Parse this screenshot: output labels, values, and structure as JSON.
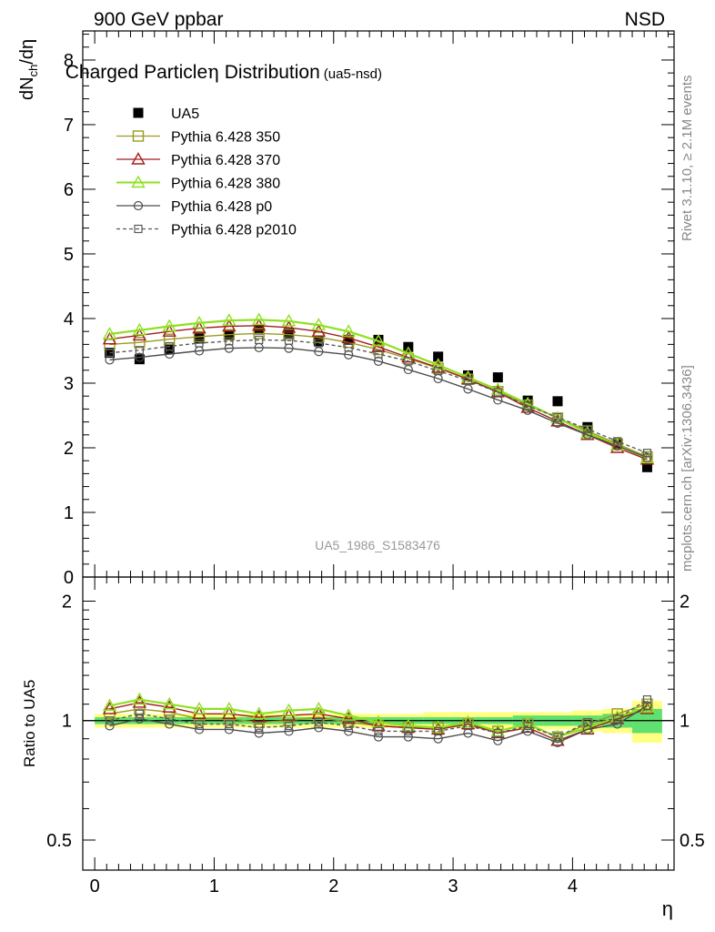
{
  "header": {
    "left": "900 GeV ppbar",
    "right": "NSD"
  },
  "side_labels": {
    "rivet": "Rivet 3.1.10, ≥ 2.1M events",
    "mcplots": "mcplots.cern.ch [arXiv:1306.3436]"
  },
  "chart_data": [
    {
      "type": "scatter",
      "title": "Charged Particle",
      "title_symbol": "η",
      "title_main": "Distribution",
      "title_sub": "(ua5-nsd)",
      "ylabel": "dN",
      "ylabel_sub": "ch",
      "ylabel_tail": "/dη",
      "watermark": "UA5_1986_S1583476",
      "xlim": [
        -0.1,
        4.85
      ],
      "ylim": [
        0,
        8.45
      ],
      "yticks": [
        0,
        1,
        2,
        3,
        4,
        5,
        6,
        7,
        8
      ],
      "grid": false,
      "legend_position": "top-left",
      "x": [
        0.125,
        0.375,
        0.625,
        0.875,
        1.125,
        1.375,
        1.625,
        1.875,
        2.125,
        2.375,
        2.625,
        2.875,
        3.125,
        3.375,
        3.625,
        3.875,
        4.125,
        4.375,
        4.625
      ],
      "series": [
        {
          "name": "UA5",
          "color": "#000000",
          "marker": "filled-square",
          "line": "none",
          "values": [
            3.47,
            3.37,
            3.52,
            3.69,
            3.74,
            3.83,
            3.77,
            3.65,
            3.67,
            3.67,
            3.56,
            3.41,
            3.12,
            3.09,
            2.73,
            2.72,
            2.32,
            2.07,
            1.7
          ]
        },
        {
          "name": "Pythia 6.428 350",
          "color": "#9a9a23",
          "marker": "open-square",
          "line": "solid",
          "values": [
            3.6,
            3.63,
            3.68,
            3.72,
            3.75,
            3.77,
            3.75,
            3.71,
            3.63,
            3.52,
            3.38,
            3.23,
            3.06,
            2.87,
            2.66,
            2.46,
            2.26,
            2.06,
            1.86
          ]
        },
        {
          "name": "Pythia 6.428 370",
          "color": "#a31d1d",
          "marker": "open-triangle",
          "line": "solid",
          "values": [
            3.68,
            3.74,
            3.8,
            3.85,
            3.88,
            3.89,
            3.86,
            3.8,
            3.7,
            3.56,
            3.4,
            3.24,
            3.06,
            2.86,
            2.62,
            2.41,
            2.2,
            2.0,
            1.82
          ]
        },
        {
          "name": "Pythia 6.428 380",
          "color": "#8ee01f",
          "marker": "open-triangle",
          "line": "solid",
          "values": [
            3.76,
            3.82,
            3.88,
            3.93,
            3.97,
            3.98,
            3.96,
            3.9,
            3.8,
            3.65,
            3.46,
            3.28,
            3.09,
            2.9,
            2.68,
            2.46,
            2.23,
            2.04,
            1.84
          ]
        },
        {
          "name": "Pythia 6.428 p0",
          "color": "#4d4d4d",
          "marker": "open-circle",
          "line": "solid",
          "values": [
            3.36,
            3.4,
            3.45,
            3.5,
            3.54,
            3.55,
            3.54,
            3.49,
            3.44,
            3.34,
            3.21,
            3.07,
            2.91,
            2.74,
            2.58,
            2.38,
            2.2,
            2.03,
            1.85
          ]
        },
        {
          "name": "Pythia 6.428 p2010",
          "color": "#5a5a5a",
          "marker": "open-square-small",
          "line": "dashed",
          "values": [
            3.47,
            3.51,
            3.57,
            3.62,
            3.65,
            3.67,
            3.66,
            3.62,
            3.55,
            3.45,
            3.34,
            3.19,
            3.04,
            2.86,
            2.65,
            2.47,
            2.29,
            2.1,
            1.92
          ]
        }
      ]
    },
    {
      "type": "line",
      "ylabel": "Ratio to UA5",
      "xlabel": "η",
      "xlim": [
        -0.1,
        4.85
      ],
      "ylim": [
        0.42,
        2.3
      ],
      "ytick_labels": [
        "0.5",
        "1",
        "2"
      ],
      "yticks": [
        0.5,
        1,
        2
      ],
      "xticks": [
        0,
        1,
        2,
        3,
        4
      ],
      "reference_line": 1,
      "band_colors": {
        "outer": "#ffff80",
        "inner": "#60e070"
      },
      "bands": [
        {
          "x0": 0.0,
          "x1": 0.25,
          "outer": [
            0.96,
            1.04
          ],
          "inner": [
            0.98,
            1.02
          ]
        },
        {
          "x0": 0.25,
          "x1": 0.5,
          "outer": [
            0.96,
            1.04
          ],
          "inner": [
            0.98,
            1.02
          ]
        },
        {
          "x0": 0.5,
          "x1": 0.75,
          "outer": [
            0.96,
            1.04
          ],
          "inner": [
            0.98,
            1.02
          ]
        },
        {
          "x0": 0.75,
          "x1": 1.0,
          "outer": [
            0.96,
            1.04
          ],
          "inner": [
            0.98,
            1.02
          ]
        },
        {
          "x0": 1.0,
          "x1": 1.25,
          "outer": [
            0.96,
            1.04
          ],
          "inner": [
            0.98,
            1.02
          ]
        },
        {
          "x0": 1.25,
          "x1": 1.5,
          "outer": [
            0.96,
            1.04
          ],
          "inner": [
            0.98,
            1.02
          ]
        },
        {
          "x0": 1.5,
          "x1": 1.75,
          "outer": [
            0.96,
            1.04
          ],
          "inner": [
            0.98,
            1.02
          ]
        },
        {
          "x0": 1.75,
          "x1": 2.0,
          "outer": [
            0.96,
            1.04
          ],
          "inner": [
            0.98,
            1.02
          ]
        },
        {
          "x0": 2.0,
          "x1": 2.25,
          "outer": [
            0.96,
            1.04
          ],
          "inner": [
            0.98,
            1.02
          ]
        },
        {
          "x0": 2.25,
          "x1": 2.5,
          "outer": [
            0.96,
            1.04
          ],
          "inner": [
            0.98,
            1.02
          ]
        },
        {
          "x0": 2.5,
          "x1": 2.75,
          "outer": [
            0.96,
            1.04
          ],
          "inner": [
            0.98,
            1.02
          ]
        },
        {
          "x0": 2.75,
          "x1": 3.0,
          "outer": [
            0.96,
            1.05
          ],
          "inner": [
            0.98,
            1.02
          ]
        },
        {
          "x0": 3.0,
          "x1": 3.25,
          "outer": [
            0.96,
            1.05
          ],
          "inner": [
            0.98,
            1.02
          ]
        },
        {
          "x0": 3.25,
          "x1": 3.5,
          "outer": [
            0.95,
            1.05
          ],
          "inner": [
            0.98,
            1.02
          ]
        },
        {
          "x0": 3.5,
          "x1": 3.75,
          "outer": [
            0.95,
            1.05
          ],
          "inner": [
            0.97,
            1.03
          ]
        },
        {
          "x0": 3.75,
          "x1": 4.0,
          "outer": [
            0.95,
            1.05
          ],
          "inner": [
            0.97,
            1.03
          ]
        },
        {
          "x0": 4.0,
          "x1": 4.25,
          "outer": [
            0.94,
            1.06
          ],
          "inner": [
            0.97,
            1.03
          ]
        },
        {
          "x0": 4.25,
          "x1": 4.5,
          "outer": [
            0.93,
            1.07
          ],
          "inner": [
            0.96,
            1.04
          ]
        },
        {
          "x0": 4.5,
          "x1": 4.75,
          "outer": [
            0.88,
            1.12
          ],
          "inner": [
            0.93,
            1.07
          ]
        }
      ],
      "series": [
        {
          "name": "Pythia 6.428 350",
          "color": "#9a9a23",
          "marker": "open-square",
          "line": "solid",
          "values": [
            1.04,
            1.07,
            1.05,
            1.01,
            1.01,
            0.99,
            1.0,
            1.02,
            0.99,
            0.97,
            0.96,
            0.96,
            0.98,
            0.94,
            0.98,
            0.91,
            0.98,
            1.04,
            1.1
          ]
        },
        {
          "name": "Pythia 6.428 370",
          "color": "#a31d1d",
          "marker": "open-triangle",
          "line": "solid",
          "values": [
            1.07,
            1.11,
            1.08,
            1.04,
            1.04,
            1.02,
            1.03,
            1.04,
            1.01,
            0.97,
            0.96,
            0.95,
            0.98,
            0.93,
            0.96,
            0.89,
            0.95,
            1.01,
            1.07
          ]
        },
        {
          "name": "Pythia 6.428 380",
          "color": "#8ee01f",
          "marker": "open-triangle",
          "line": "solid",
          "values": [
            1.09,
            1.13,
            1.1,
            1.07,
            1.07,
            1.04,
            1.06,
            1.07,
            1.03,
            0.99,
            0.97,
            0.96,
            0.99,
            0.94,
            0.98,
            0.91,
            0.96,
            1.02,
            1.08
          ]
        },
        {
          "name": "Pythia 6.428 p0",
          "color": "#4d4d4d",
          "marker": "open-circle",
          "line": "solid",
          "values": [
            0.97,
            1.01,
            0.98,
            0.95,
            0.95,
            0.93,
            0.94,
            0.96,
            0.94,
            0.91,
            0.91,
            0.9,
            0.93,
            0.89,
            0.94,
            0.88,
            0.95,
            0.98,
            1.09
          ]
        },
        {
          "name": "Pythia 6.428 p2010",
          "color": "#5a5a5a",
          "marker": "open-square-small",
          "line": "dashed",
          "values": [
            1.0,
            1.04,
            1.01,
            0.98,
            0.98,
            0.96,
            0.97,
            0.99,
            0.97,
            0.94,
            0.94,
            0.94,
            0.97,
            0.93,
            0.97,
            0.91,
            0.99,
            1.01,
            1.13
          ]
        }
      ]
    }
  ]
}
